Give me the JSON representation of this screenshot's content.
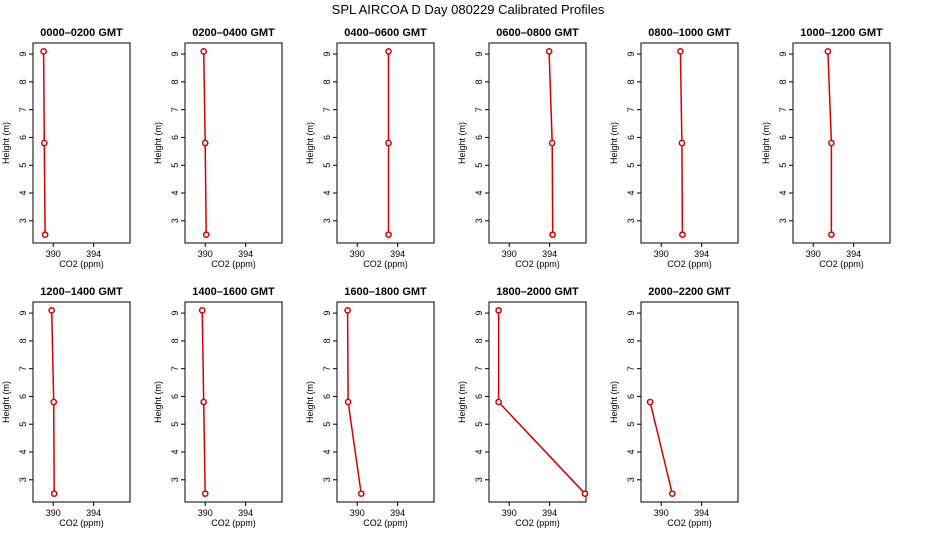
{
  "figure": {
    "title": "SPL AIRCOA D  Day 080229  Calibrated Profiles"
  },
  "chart_data": [
    {
      "type": "line",
      "title": "0000–0200 GMT",
      "xlabel": "CO2 (ppm)",
      "ylabel": "Height (m)",
      "xlim": [
        388,
        397.6
      ],
      "ylim": [
        2.2,
        9.4
      ],
      "xticks": [
        390,
        394
      ],
      "yticks": [
        3,
        4,
        5,
        6,
        7,
        8,
        9
      ],
      "series": [
        {
          "name": "profile",
          "color": "#d40000",
          "x": [
            389.05,
            389.12,
            389.2
          ],
          "y": [
            9.1,
            5.8,
            2.5
          ]
        }
      ]
    },
    {
      "type": "line",
      "title": "0200–0400 GMT",
      "xlabel": "CO2 (ppm)",
      "ylabel": "Height (m)",
      "xlim": [
        388,
        397.6
      ],
      "ylim": [
        2.2,
        9.4
      ],
      "xticks": [
        390,
        394
      ],
      "yticks": [
        3,
        4,
        5,
        6,
        7,
        8,
        9
      ],
      "series": [
        {
          "name": "profile",
          "color": "#d40000",
          "x": [
            389.85,
            390.0,
            390.1
          ],
          "y": [
            9.1,
            5.8,
            2.5
          ]
        }
      ]
    },
    {
      "type": "line",
      "title": "0400–0600 GMT",
      "xlabel": "CO2 (ppm)",
      "ylabel": "Height (m)",
      "xlim": [
        388,
        397.6
      ],
      "ylim": [
        2.2,
        9.4
      ],
      "xticks": [
        390,
        394
      ],
      "yticks": [
        3,
        4,
        5,
        6,
        7,
        8,
        9
      ],
      "series": [
        {
          "name": "profile",
          "color": "#d40000",
          "x": [
            393.1,
            393.1,
            393.1
          ],
          "y": [
            9.1,
            5.8,
            2.5
          ]
        }
      ]
    },
    {
      "type": "line",
      "title": "0600–0800 GMT",
      "xlabel": "CO2 (ppm)",
      "ylabel": "Height (m)",
      "xlim": [
        388,
        397.6
      ],
      "ylim": [
        2.2,
        9.4
      ],
      "xticks": [
        390,
        394
      ],
      "yticks": [
        3,
        4,
        5,
        6,
        7,
        8,
        9
      ],
      "series": [
        {
          "name": "profile",
          "color": "#d40000",
          "x": [
            393.95,
            394.25,
            394.3
          ],
          "y": [
            9.1,
            5.8,
            2.5
          ]
        }
      ]
    },
    {
      "type": "line",
      "title": "0800–1000 GMT",
      "xlabel": "CO2 (ppm)",
      "ylabel": "Height (m)",
      "xlim": [
        388,
        397.6
      ],
      "ylim": [
        2.2,
        9.4
      ],
      "xticks": [
        390,
        394
      ],
      "yticks": [
        3,
        4,
        5,
        6,
        7,
        8,
        9
      ],
      "series": [
        {
          "name": "profile",
          "color": "#d40000",
          "x": [
            391.9,
            392.05,
            392.1
          ],
          "y": [
            9.1,
            5.8,
            2.5
          ]
        }
      ]
    },
    {
      "type": "line",
      "title": "1000–1200 GMT",
      "xlabel": "CO2 (ppm)",
      "ylabel": "Height (m)",
      "xlim": [
        388,
        397.6
      ],
      "ylim": [
        2.2,
        9.4
      ],
      "xticks": [
        390,
        394
      ],
      "yticks": [
        3,
        4,
        5,
        6,
        7,
        8,
        9
      ],
      "series": [
        {
          "name": "profile",
          "color": "#d40000",
          "x": [
            391.45,
            391.8,
            391.8
          ],
          "y": [
            9.1,
            5.8,
            2.5
          ]
        }
      ]
    },
    {
      "type": "line",
      "title": "1200–1400 GMT",
      "xlabel": "CO2 (ppm)",
      "ylabel": "Height (m)",
      "xlim": [
        388,
        397.6
      ],
      "ylim": [
        2.2,
        9.4
      ],
      "xticks": [
        390,
        394
      ],
      "yticks": [
        3,
        4,
        5,
        6,
        7,
        8,
        9
      ],
      "series": [
        {
          "name": "profile",
          "color": "#d40000",
          "x": [
            389.85,
            390.05,
            390.1
          ],
          "y": [
            9.1,
            5.8,
            2.5
          ]
        }
      ]
    },
    {
      "type": "line",
      "title": "1400–1600 GMT",
      "xlabel": "CO2 (ppm)",
      "ylabel": "Height (m)",
      "xlim": [
        388,
        397.6
      ],
      "ylim": [
        2.2,
        9.4
      ],
      "xticks": [
        390,
        394
      ],
      "yticks": [
        3,
        4,
        5,
        6,
        7,
        8,
        9
      ],
      "series": [
        {
          "name": "profile",
          "color": "#d40000",
          "x": [
            389.7,
            389.85,
            390.0
          ],
          "y": [
            9.1,
            5.8,
            2.5
          ]
        }
      ]
    },
    {
      "type": "line",
      "title": "1600–1800 GMT",
      "xlabel": "CO2 (ppm)",
      "ylabel": "Height (m)",
      "xlim": [
        388,
        397.6
      ],
      "ylim": [
        2.2,
        9.4
      ],
      "xticks": [
        390,
        394
      ],
      "yticks": [
        3,
        4,
        5,
        6,
        7,
        8,
        9
      ],
      "series": [
        {
          "name": "profile",
          "color": "#d40000",
          "x": [
            389.05,
            389.1,
            390.4
          ],
          "y": [
            9.1,
            5.8,
            2.5
          ]
        }
      ]
    },
    {
      "type": "line",
      "title": "1800–2000 GMT",
      "xlabel": "CO2 (ppm)",
      "ylabel": "Height (m)",
      "xlim": [
        388,
        397.6
      ],
      "ylim": [
        2.2,
        9.4
      ],
      "xticks": [
        390,
        394
      ],
      "yticks": [
        3,
        4,
        5,
        6,
        7,
        8,
        9
      ],
      "series": [
        {
          "name": "profile",
          "color": "#d40000",
          "x": [
            388.95,
            388.95,
            397.5
          ],
          "y": [
            9.1,
            5.8,
            2.5
          ]
        }
      ]
    },
    {
      "type": "line",
      "title": "2000–2200 GMT",
      "xlabel": "CO2 (ppm)",
      "ylabel": "Height (m)",
      "xlim": [
        388,
        397.6
      ],
      "ylim": [
        2.2,
        9.4
      ],
      "xticks": [
        390,
        394
      ],
      "yticks": [
        3,
        4,
        5,
        6,
        7,
        8,
        9
      ],
      "series": [
        {
          "name": "profile",
          "color": "#d40000",
          "x": [
            388.9,
            391.1
          ],
          "y": [
            5.8,
            2.5
          ]
        }
      ]
    }
  ]
}
